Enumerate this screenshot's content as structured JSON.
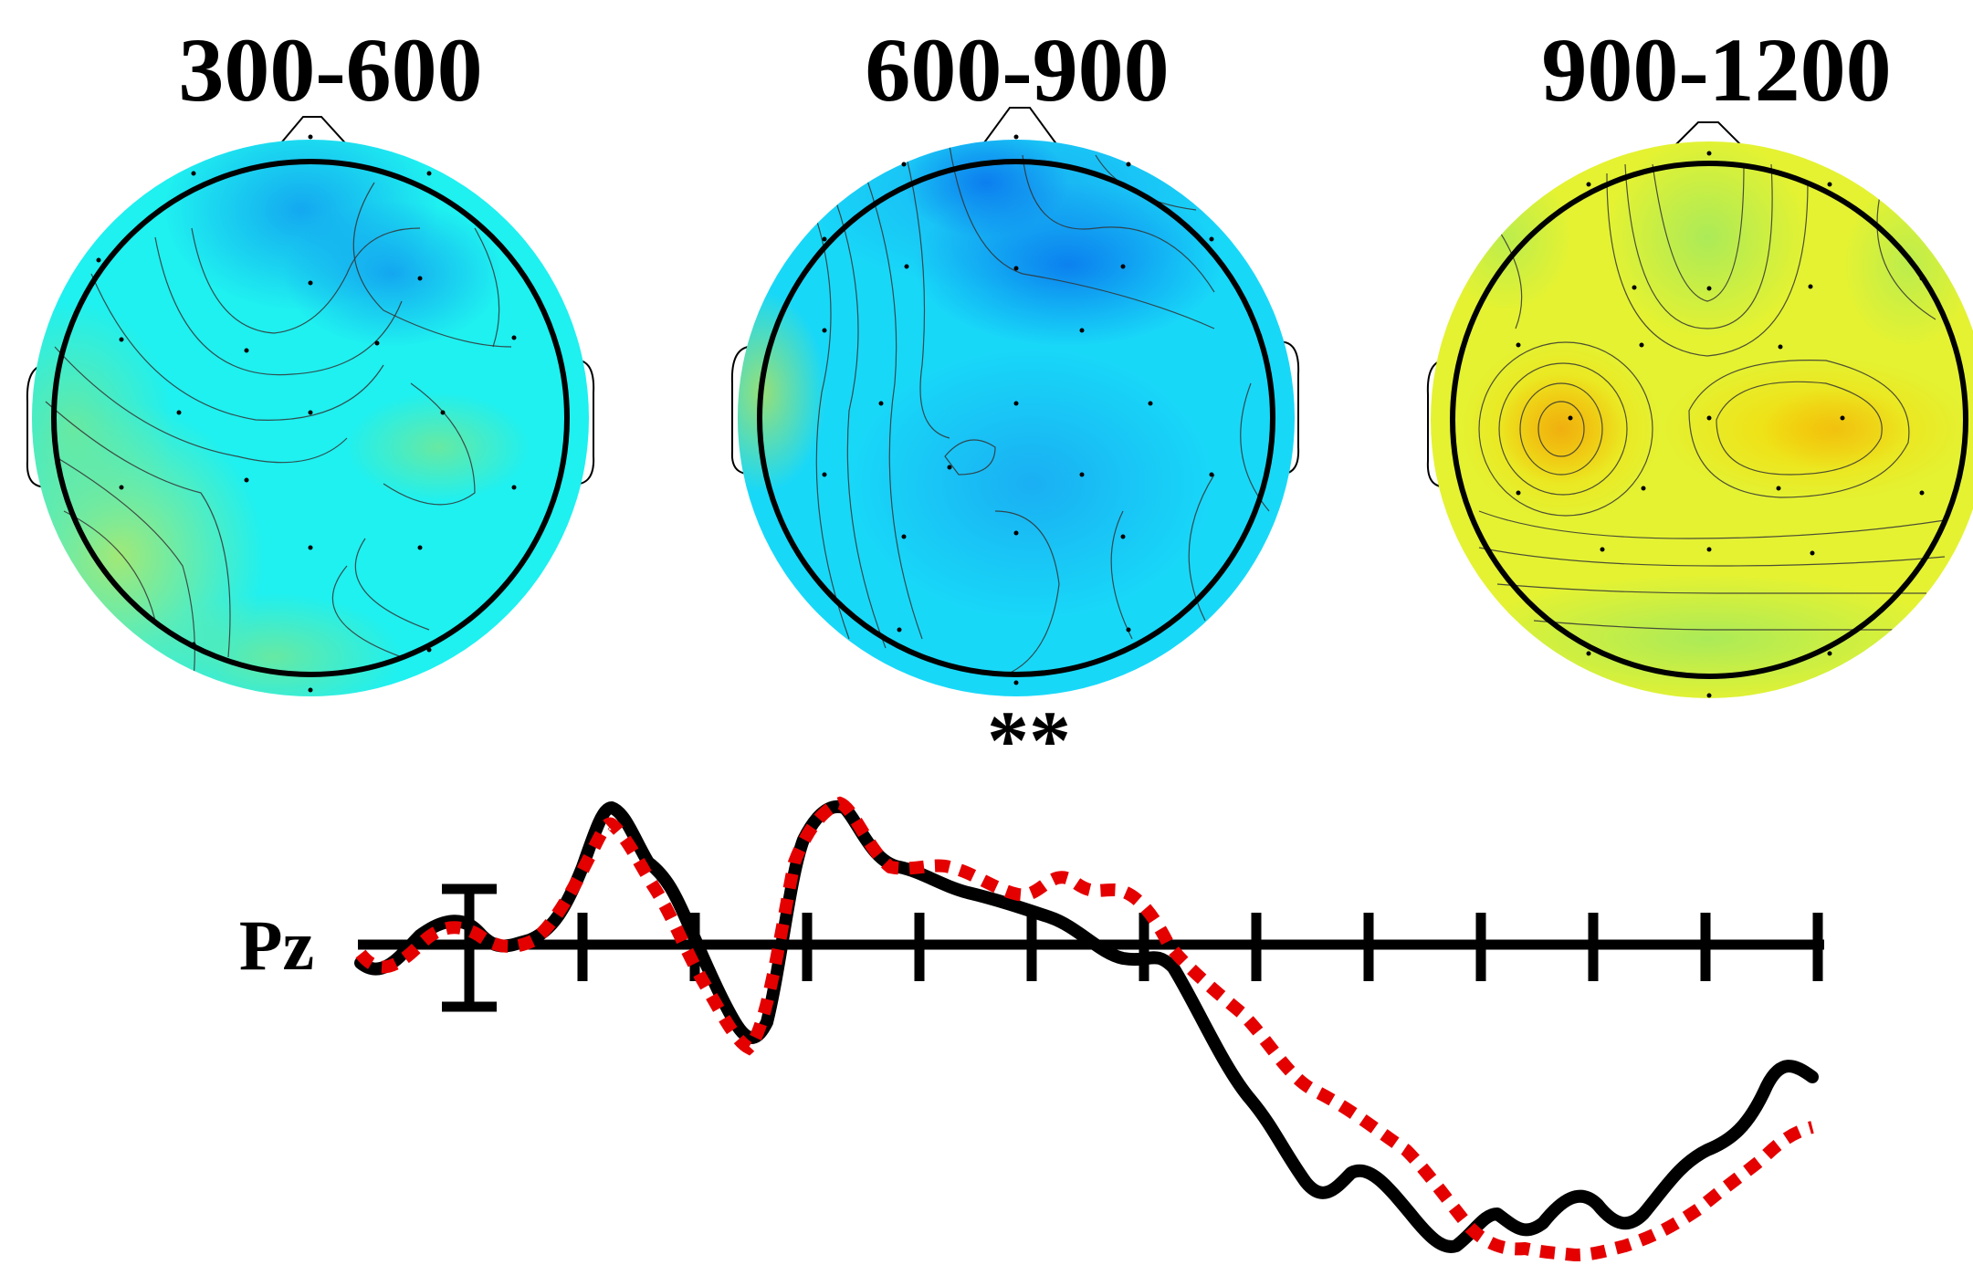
{
  "topomaps": [
    {
      "id": "topo-300-600",
      "title": "300-600",
      "colors": {
        "base": "#1ff0f0",
        "hot1": "#1090f0",
        "hot2": "#6fe89a",
        "hot3": "#a8e870"
      }
    },
    {
      "id": "topo-600-900",
      "title": "600-900",
      "colors": {
        "base": "#18d8f8",
        "hot1": "#0a78ee",
        "hot2": "#1aa8f2",
        "hot3": "#9ee070"
      }
    },
    {
      "id": "topo-900-1200",
      "title": "900-1200",
      "colors": {
        "base": "#e4f232",
        "hot1": "#f0b010",
        "hot2": "#f5d808",
        "hot3": "#a8ea5a"
      }
    }
  ],
  "significance": "**",
  "erp": {
    "channel": "Pz",
    "colors": {
      "condition_a": "#000000",
      "condition_b": "#e50000",
      "axis": "#000000"
    }
  }
}
